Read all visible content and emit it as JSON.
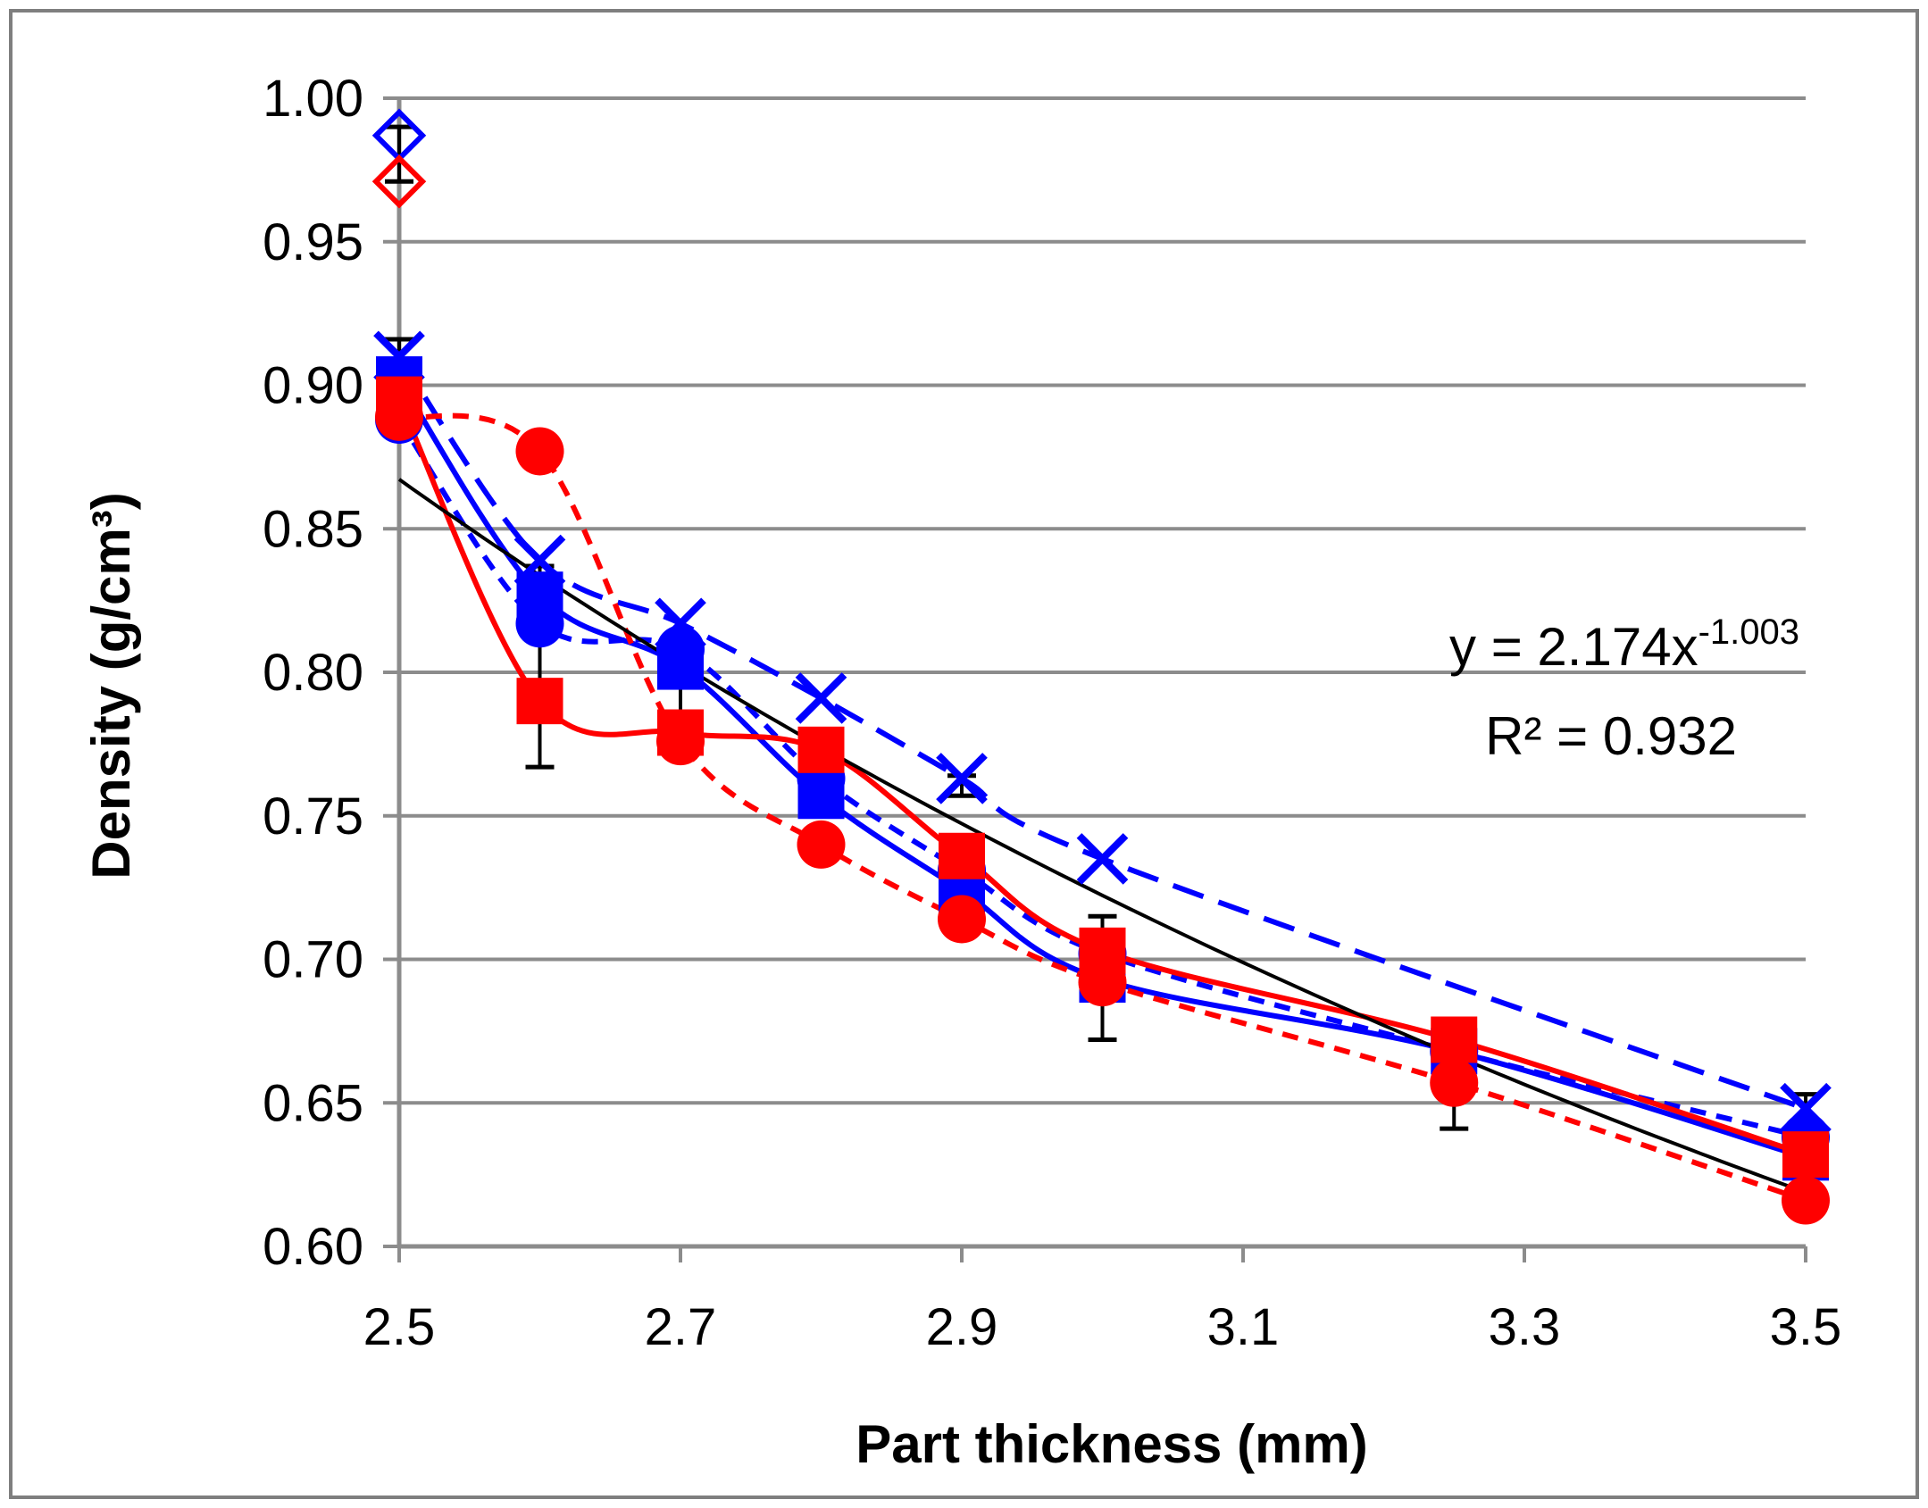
{
  "chart_data": {
    "type": "line",
    "title": "",
    "xlabel": "Part thickness (mm)",
    "ylabel": "Density  (g/cm³)",
    "xlim": [
      2.5,
      3.5
    ],
    "ylim": [
      0.6,
      1.0
    ],
    "x_ticks": [
      "2.5",
      "2.7",
      "2.9",
      "3.1",
      "3.3",
      "3.5"
    ],
    "y_ticks": [
      "0.60",
      "0.65",
      "0.70",
      "0.75",
      "0.80",
      "0.85",
      "0.90",
      "0.95",
      "1.00"
    ],
    "grid": "horizontal",
    "legend": "none",
    "fit_equation": {
      "text_main": "y = 2.174x",
      "text_exp": "-1.003",
      "r2_text": "R² = 0.932",
      "a": 2.174,
      "b": -1.003
    },
    "series": [
      {
        "name": "blue-cross-dashed",
        "color": "#0000ff",
        "marker": "x",
        "line": "dashed",
        "x": [
          2.5,
          2.6,
          2.7,
          2.8,
          2.9,
          3.0,
          3.5
        ],
        "y": [
          0.91,
          0.839,
          0.817,
          0.791,
          0.763,
          0.735,
          0.648
        ]
      },
      {
        "name": "blue-square-solid",
        "color": "#0000ff",
        "marker": "square",
        "line": "solid",
        "x": [
          2.5,
          2.6,
          2.7,
          2.8,
          2.9,
          3.0,
          3.25,
          3.5
        ],
        "y": [
          0.902,
          0.827,
          0.802,
          0.757,
          0.724,
          0.693,
          0.668,
          0.631
        ]
      },
      {
        "name": "blue-circle-dashed",
        "color": "#0000ff",
        "marker": "circle",
        "line": "dashed",
        "x": [
          2.5,
          2.6,
          2.7,
          2.8,
          2.9,
          3.0,
          3.25,
          3.5
        ],
        "y": [
          0.888,
          0.817,
          0.808,
          0.763,
          0.731,
          0.702,
          0.668,
          0.638
        ]
      },
      {
        "name": "red-square-solid",
        "color": "#ff0000",
        "marker": "square",
        "line": "solid",
        "x": [
          2.5,
          2.6,
          2.7,
          2.8,
          2.9,
          3.0,
          3.25,
          3.5
        ],
        "y": [
          0.895,
          0.79,
          0.779,
          0.773,
          0.736,
          0.703,
          0.672,
          0.632
        ]
      },
      {
        "name": "red-circle-dashed",
        "color": "#ff0000",
        "marker": "circle",
        "line": "dashed",
        "x": [
          2.5,
          2.6,
          2.7,
          2.8,
          2.9,
          3.0,
          3.25,
          3.5
        ],
        "y": [
          0.889,
          0.877,
          0.776,
          0.74,
          0.714,
          0.692,
          0.657,
          0.616
        ]
      }
    ],
    "reference_points": [
      {
        "name": "blue-diamond",
        "color": "#0000ff",
        "x": 2.5,
        "y": 0.987
      },
      {
        "name": "red-diamond",
        "color": "#ff0000",
        "x": 2.5,
        "y": 0.971
      }
    ],
    "error_bars": [
      {
        "x": 2.5,
        "y": 0.987,
        "low": 0.971,
        "high": 0.99
      },
      {
        "x": 2.5,
        "y": 0.9,
        "low": 0.886,
        "high": 0.916
      },
      {
        "x": 2.6,
        "y": 0.815,
        "low": 0.767,
        "high": 0.837
      },
      {
        "x": 2.7,
        "y": 0.79,
        "low": 0.771,
        "high": 0.811
      },
      {
        "x": 2.8,
        "y": 0.775,
        "low": 0.768,
        "high": 0.778
      },
      {
        "x": 2.9,
        "y": 0.765,
        "low": 0.757,
        "high": 0.764
      },
      {
        "x": 3.0,
        "y": 0.7,
        "low": 0.672,
        "high": 0.715
      },
      {
        "x": 3.25,
        "y": 0.66,
        "low": 0.641,
        "high": 0.674
      },
      {
        "x": 3.5,
        "y": 0.64,
        "low": 0.612,
        "high": 0.653
      }
    ]
  }
}
